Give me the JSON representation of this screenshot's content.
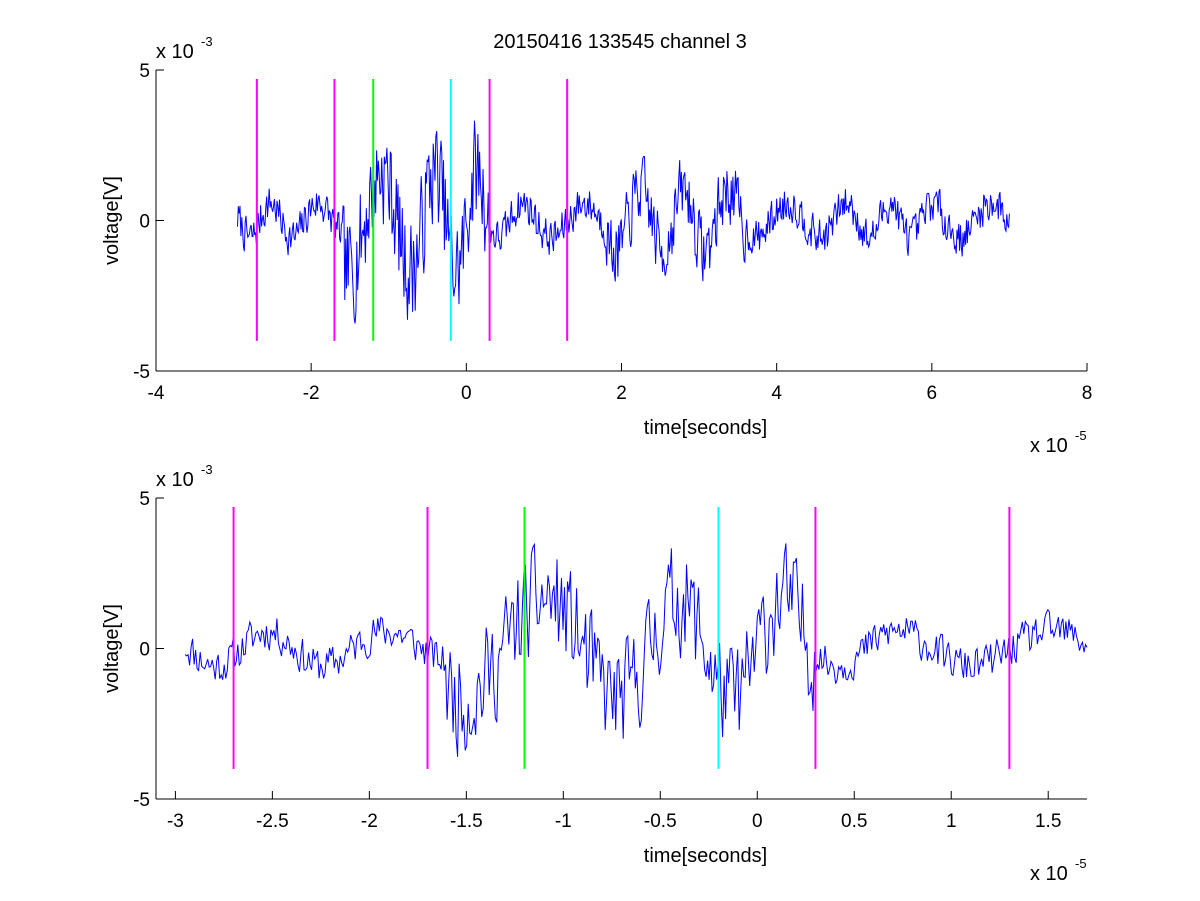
{
  "chart_data": {
    "title": "20150416 133545 channel 3",
    "plots": [
      {
        "type": "line",
        "xlabel": "time[seconds]",
        "ylabel": "voltage[V]",
        "x_exponent": {
          "text": "x 10",
          "power": "-5"
        },
        "y_exponent": {
          "text": "x 10",
          "power": "-3"
        },
        "xlim": [
          -4,
          8
        ],
        "ylim": [
          -5,
          5
        ],
        "xticks": [
          -4,
          -2,
          0,
          2,
          4,
          6,
          8
        ],
        "xtick_labels": [
          "-4",
          "-2",
          "0",
          "2",
          "4",
          "6",
          "8"
        ],
        "yticks": [
          -5,
          0,
          5
        ],
        "ytick_labels": [
          "-5",
          "0",
          "5"
        ],
        "signal": {
          "color": "#0000ff",
          "x_start": -2.95,
          "x_end": 7.0,
          "n_points": 900,
          "seed": 7
        },
        "markers": [
          {
            "x": -2.7,
            "y0": -4,
            "y1": 4.7,
            "color": "#ff00ff"
          },
          {
            "x": -1.7,
            "y0": -4,
            "y1": 4.7,
            "color": "#ff00ff"
          },
          {
            "x": -1.2,
            "y0": -4,
            "y1": 4.7,
            "color": "#00ff00"
          },
          {
            "x": -0.2,
            "y0": -4,
            "y1": 4.7,
            "color": "#00ffff"
          },
          {
            "x": 0.3,
            "y0": -4,
            "y1": 4.7,
            "color": "#ff00ff"
          },
          {
            "x": 1.3,
            "y0": -4,
            "y1": 4.7,
            "color": "#ff00ff"
          }
        ]
      },
      {
        "type": "line",
        "xlabel": "time[seconds]",
        "ylabel": "voltage[V]",
        "x_exponent": {
          "text": "x 10",
          "power": "-5"
        },
        "y_exponent": {
          "text": "x 10",
          "power": "-3"
        },
        "xlim": [
          -3.1,
          1.7
        ],
        "ylim": [
          -5,
          5
        ],
        "xticks": [
          -3,
          -2.5,
          -2,
          -1.5,
          -1,
          -0.5,
          0,
          0.5,
          1,
          1.5
        ],
        "xtick_labels": [
          "-3",
          "-2.5",
          "-2",
          "-1.5",
          "-1",
          "-0.5",
          "0",
          "0.5",
          "1",
          "1.5"
        ],
        "yticks": [
          -5,
          0,
          5
        ],
        "ytick_labels": [
          "-5",
          "0",
          "5"
        ],
        "signal": {
          "color": "#0000ff",
          "x_start": -2.95,
          "x_end": 1.7,
          "n_points": 600,
          "seed": 11
        },
        "markers": [
          {
            "x": -2.7,
            "y0": -4,
            "y1": 4.7,
            "color": "#ff00ff"
          },
          {
            "x": -1.7,
            "y0": -4,
            "y1": 4.7,
            "color": "#ff00ff"
          },
          {
            "x": -1.2,
            "y0": -4,
            "y1": 4.7,
            "color": "#00ff00"
          },
          {
            "x": -0.2,
            "y0": -4,
            "y1": 4.7,
            "color": "#00ffff"
          },
          {
            "x": 0.3,
            "y0": -4,
            "y1": 4.7,
            "color": "#ff00ff"
          },
          {
            "x": 1.3,
            "y0": -4,
            "y1": 4.7,
            "color": "#ff00ff"
          }
        ]
      }
    ]
  }
}
